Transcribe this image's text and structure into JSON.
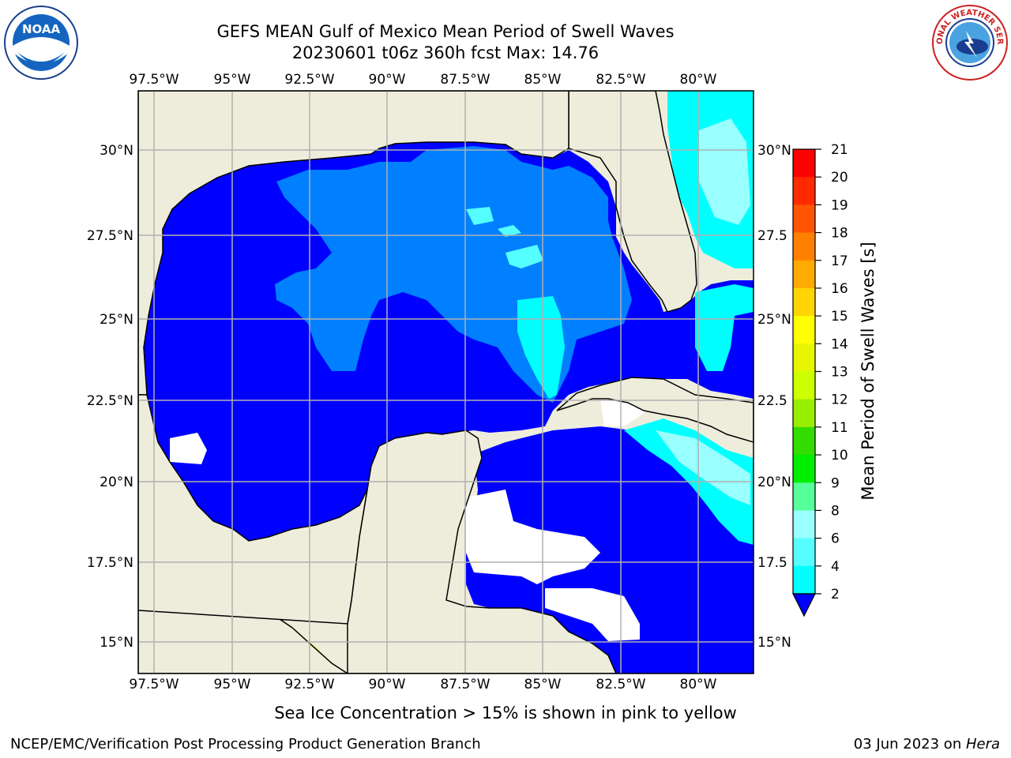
{
  "title": {
    "line1": "GEFS MEAN Gulf of Mexico Mean Period of Swell Waves",
    "line2": "20230601 t06z 360h fcst   Max: 14.76"
  },
  "map": {
    "lon_labels": [
      "97.5°W",
      "95°W",
      "92.5°W",
      "90°W",
      "87.5°W",
      "85°W",
      "82.5°W",
      "80°W"
    ],
    "lat_labels_left": [
      "30°N",
      "27.5°N",
      "25°N",
      "22.5°N",
      "20°N",
      "17.5°N",
      "15°N"
    ],
    "lat_labels_right": [
      "30°N",
      "27.5",
      "25°N",
      "22.5",
      "20°N",
      "17.5",
      "15°N"
    ],
    "land_color": "#eeeddc",
    "grid_color": "#b0b0b0"
  },
  "colorbar": {
    "label": "Mean Period of Swell Waves [s]",
    "ticks": [
      "21",
      "20",
      "19",
      "18",
      "17",
      "16",
      "15",
      "14",
      "13",
      "12",
      "11",
      "10",
      "9",
      "8",
      "6",
      "4",
      "2"
    ],
    "colors": [
      "#ff0000",
      "#ff2a00",
      "#ff5500",
      "#ff8000",
      "#ffaa00",
      "#ffd400",
      "#ffff00",
      "#e6f500",
      "#ccff00",
      "#99ee00",
      "#33dd00",
      "#00ee00",
      "#55ff99",
      "#99ffff",
      "#55ffff",
      "#00ffff",
      "#0080ff",
      "#0000ff"
    ]
  },
  "logos": {
    "noaa_text": "NOAA",
    "nws_text": "NATIONAL WEATHER SERVICE"
  },
  "subnote": "Sea Ice Concentration > 15% is shown in pink to yellow",
  "footer": {
    "left": "NCEP/EMC/Verification Post Processing Product Generation Branch",
    "right_prefix": "03 Jun 2023 on ",
    "right_machine": "Hera"
  }
}
